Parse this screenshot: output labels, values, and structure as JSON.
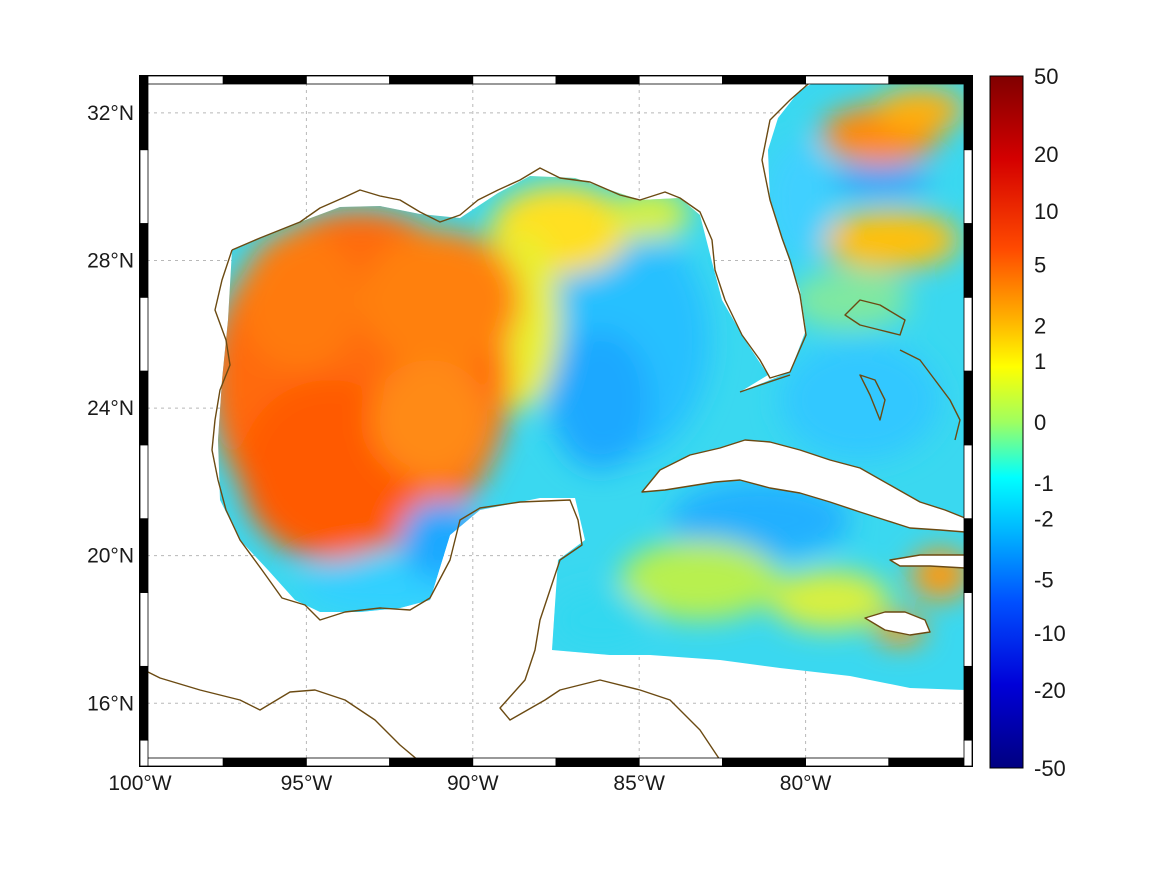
{
  "map": {
    "region": "Gulf of Mexico and western Caribbean",
    "projection": "equidistant cylindrical",
    "lon_range": [
      -100,
      -75
    ],
    "lat_range": [
      14.3,
      33
    ],
    "lon_ticks": [
      {
        "value": -100,
        "label": "100°W"
      },
      {
        "value": -95,
        "label": "95°W"
      },
      {
        "value": -90,
        "label": "90°W"
      },
      {
        "value": -85,
        "label": "85°W"
      },
      {
        "value": -80,
        "label": "80°W"
      }
    ],
    "lat_ticks": [
      {
        "value": 32,
        "label": "32°N"
      },
      {
        "value": 28,
        "label": "28°N"
      },
      {
        "value": 24,
        "label": "24°N"
      },
      {
        "value": 20,
        "label": "20°N"
      },
      {
        "value": 16,
        "label": "16°N"
      }
    ],
    "grid": true,
    "frame": "black-white checkered border",
    "coastline_color": "#6b4a12"
  },
  "colorbar": {
    "colormap": "jet",
    "scale": "symmetric log-like",
    "ticks": [
      "50",
      "20",
      "10",
      "5",
      "2",
      "1",
      "0",
      "-1",
      "-2",
      "-5",
      "-10",
      "-20",
      "-50"
    ],
    "range": [
      -50,
      50
    ]
  },
  "field": {
    "description_regions": [
      {
        "area": "western Gulf of Mexico",
        "approx_value": 8
      },
      {
        "area": "eastern Gulf / Yucatan channel",
        "approx_value": -2
      },
      {
        "area": "Caribbean south of Cuba",
        "approx_value": -1.5
      },
      {
        "area": "off Carolinas north of 30N",
        "approx_value": 5
      }
    ]
  }
}
